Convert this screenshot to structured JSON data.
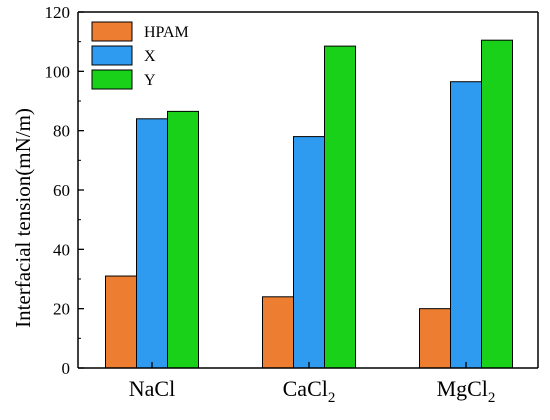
{
  "chart_data": {
    "type": "bar",
    "categories": [
      "NaCl",
      "CaCl",
      "MgCl"
    ],
    "category_subscripts": [
      "",
      "2",
      "2"
    ],
    "series": [
      {
        "name": "HPAM",
        "color": "#ed7d31",
        "values": [
          31,
          24,
          20
        ]
      },
      {
        "name": "X",
        "color": "#2e9bf0",
        "values": [
          84,
          78,
          96.5
        ]
      },
      {
        "name": "Y",
        "color": "#19d119",
        "values": [
          86.5,
          108.5,
          110.5
        ]
      }
    ],
    "xlabel": "",
    "ylabel": "Interfacial tension(mN/m)",
    "ylim": [
      0,
      120
    ],
    "yticks": [
      0,
      20,
      40,
      60,
      80,
      100,
      120
    ],
    "grid": false,
    "legend_position": "top-left"
  }
}
